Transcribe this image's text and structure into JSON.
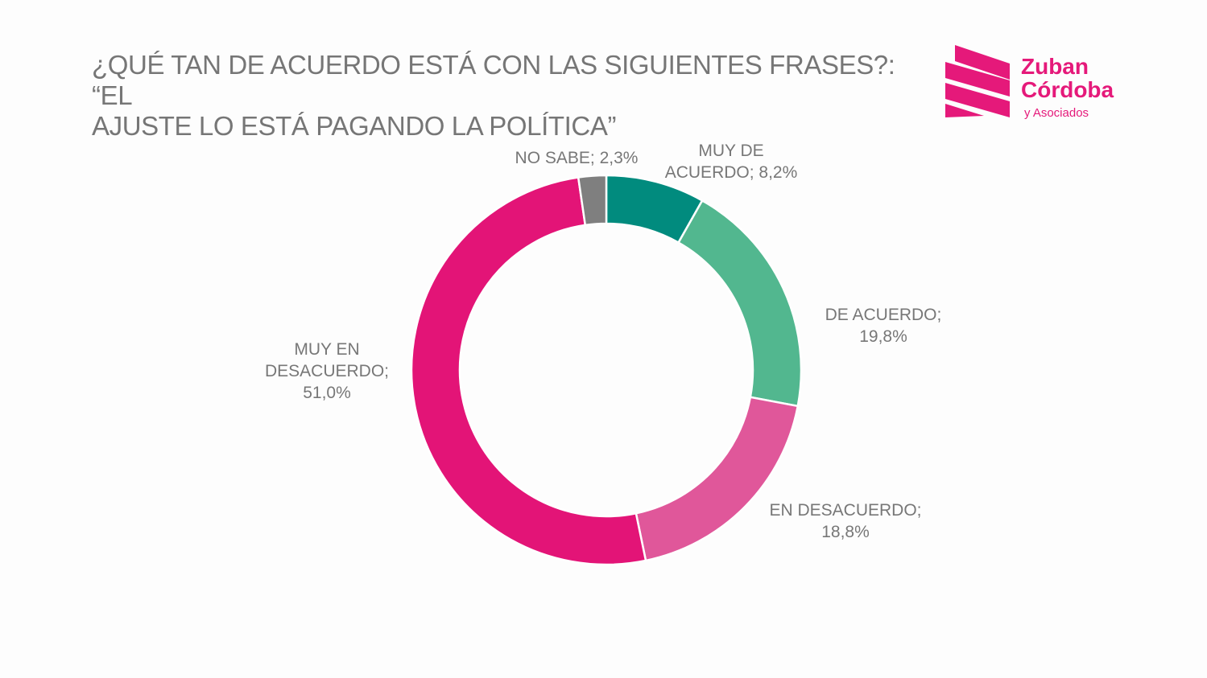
{
  "chart_data": {
    "type": "pie",
    "variant": "donut",
    "title_lines": [
      "¿QUÉ TAN DE ACUERDO ESTÁ CON LAS SIGUIENTES FRASES?: “EL",
      "AJUSTE LO ESTÁ PAGANDO LA POLÍTICA”"
    ],
    "slices": [
      {
        "name": "MUY DE ACUERDO",
        "value": 8.2,
        "color": "#018b7e",
        "label_lines": [
          "MUY DE",
          "ACUERDO; 8,2%"
        ]
      },
      {
        "name": "DE ACUERDO",
        "value": 19.8,
        "color": "#52b78f",
        "label_lines": [
          "DE ACUERDO;",
          "19,8%"
        ]
      },
      {
        "name": "EN DESACUERDO",
        "value": 18.8,
        "color": "#e0579a",
        "label_lines": [
          "EN DESACUERDO;",
          "18,8%"
        ]
      },
      {
        "name": "MUY EN DESACUERDO",
        "value": 51.0,
        "color": "#e31477",
        "label_lines": [
          "MUY EN",
          "DESACUERDO;",
          "51,0%"
        ]
      },
      {
        "name": "NO SABE",
        "value": 2.3,
        "color": "#7f7f7f",
        "label_lines": [
          "NO SABE; 2,3%"
        ]
      }
    ]
  },
  "logo": {
    "line1": "Zuban",
    "line2": "Córdoba",
    "line3": "y Asociados",
    "color": "#e5197a"
  }
}
